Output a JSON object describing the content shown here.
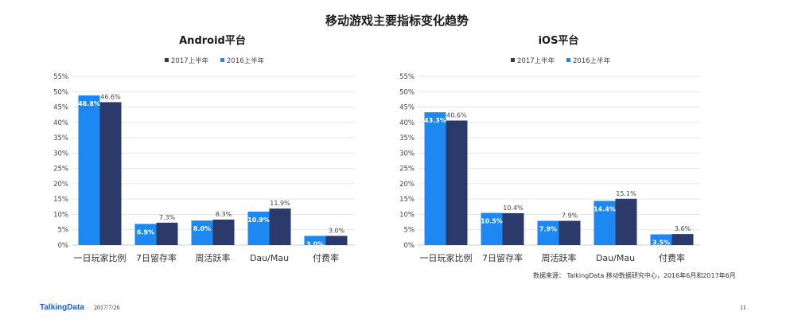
{
  "page": {
    "title": "移动游戏主要指标变化趋势",
    "source": "数据来源： TalkingData 移动数据研究中心，2016年6月和2017年6月",
    "footer_logo": "TalkingData",
    "footer_date": "2017/7/26",
    "page_number": "11"
  },
  "colors": {
    "s2017": "#2c3a6b",
    "s2016": "#1e88f2",
    "grid": "#e6e6e6",
    "axis": "#cccccc"
  },
  "chart_data": [
    {
      "type": "bar",
      "title": "Android平台",
      "categories": [
        "一日玩家比例",
        "7日留存率",
        "周活跃率",
        "Dau/Mau",
        "付费率"
      ],
      "yticks": [
        "0%",
        "5%",
        "10%",
        "15%",
        "20%",
        "25%",
        "30%",
        "35%",
        "40%",
        "45%",
        "50%",
        "55%"
      ],
      "ylim": [
        0,
        55
      ],
      "grid": true,
      "legend": "top-center",
      "series": [
        {
          "name": "2017上半年",
          "values": [
            46.6,
            7.3,
            8.3,
            11.9,
            3.0
          ],
          "labels": [
            "46.6%",
            "7.3%",
            "8.3%",
            "11.9%",
            "3.0%"
          ]
        },
        {
          "name": "2016上半年",
          "values": [
            48.8,
            6.9,
            8.0,
            10.9,
            3.0
          ],
          "labels": [
            "48.8%",
            "6.9%",
            "8.0%",
            "10.9%",
            "3.0%"
          ]
        }
      ]
    },
    {
      "type": "bar",
      "title": "iOS平台",
      "categories": [
        "一日玩家比例",
        "7日留存率",
        "周活跃率",
        "Dau/Mau",
        "付费率"
      ],
      "yticks": [
        "0%",
        "5%",
        "10%",
        "15%",
        "20%",
        "25%",
        "30%",
        "35%",
        "40%",
        "45%",
        "50%",
        "55%"
      ],
      "ylim": [
        0,
        55
      ],
      "grid": true,
      "legend": "top-center",
      "series": [
        {
          "name": "2017上半年",
          "values": [
            40.6,
            10.4,
            7.9,
            15.1,
            3.6
          ],
          "labels": [
            "40.6%",
            "10.4%",
            "7.9%",
            "15.1%",
            "3.6%"
          ]
        },
        {
          "name": "2016上半年",
          "values": [
            43.3,
            10.5,
            7.9,
            14.4,
            3.5
          ],
          "labels": [
            "43.3%",
            "10.5%",
            "7.9%",
            "14.4%",
            "3.5%"
          ]
        }
      ]
    }
  ]
}
